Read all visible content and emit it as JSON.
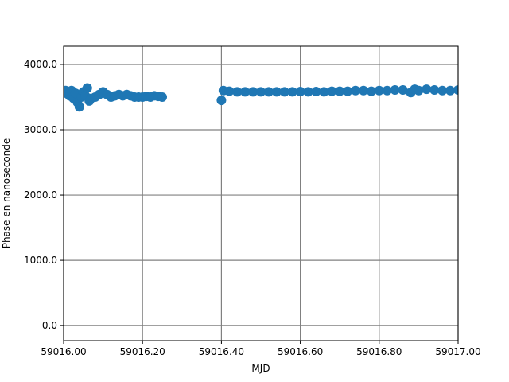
{
  "chart_data": {
    "type": "scatter",
    "xlabel": "MJD",
    "ylabel": "Phase en nanoseconde",
    "color": "#1f77b4",
    "grid": true,
    "xlim": [
      59016.0,
      59017.0
    ],
    "ylim": [
      -230,
      4280
    ],
    "xticks": [
      {
        "value": 59016.0,
        "label": "59016.00"
      },
      {
        "value": 59016.2,
        "label": "59016.20"
      },
      {
        "value": 59016.4,
        "label": "59016.40"
      },
      {
        "value": 59016.6,
        "label": "59016.60"
      },
      {
        "value": 59016.8,
        "label": "59016.80"
      },
      {
        "value": 59017.0,
        "label": "59017.00"
      }
    ],
    "yticks": [
      {
        "value": 0,
        "label": "0.0"
      },
      {
        "value": 1000,
        "label": "1000.0"
      },
      {
        "value": 2000,
        "label": "2000.0"
      },
      {
        "value": 3000,
        "label": "3000.0"
      },
      {
        "value": 4000,
        "label": "4000.0"
      }
    ],
    "x": [
      59016.0,
      59016.005,
      59016.01,
      59016.015,
      59016.02,
      59016.025,
      59016.03,
      59016.035,
      59016.04,
      59016.045,
      59016.05,
      59016.055,
      59016.06,
      59016.065,
      59016.07,
      59016.08,
      59016.09,
      59016.1,
      59016.11,
      59016.12,
      59016.13,
      59016.14,
      59016.15,
      59016.16,
      59016.17,
      59016.18,
      59016.19,
      59016.2,
      59016.21,
      59016.22,
      59016.23,
      59016.24,
      59016.25,
      59016.4,
      59016.405,
      59016.42,
      59016.44,
      59016.46,
      59016.48,
      59016.5,
      59016.52,
      59016.54,
      59016.56,
      59016.58,
      59016.6,
      59016.62,
      59016.64,
      59016.66,
      59016.68,
      59016.7,
      59016.72,
      59016.74,
      59016.76,
      59016.78,
      59016.8,
      59016.82,
      59016.84,
      59016.86,
      59016.88,
      59016.89,
      59016.9,
      59016.92,
      59016.94,
      59016.96,
      59016.98,
      59017.0
    ],
    "values": [
      3560,
      3600,
      3580,
      3520,
      3600,
      3480,
      3560,
      3420,
      3350,
      3500,
      3580,
      3520,
      3640,
      3440,
      3480,
      3500,
      3540,
      3580,
      3540,
      3500,
      3520,
      3540,
      3520,
      3540,
      3520,
      3500,
      3500,
      3500,
      3510,
      3500,
      3520,
      3510,
      3500,
      3450,
      3600,
      3590,
      3580,
      3580,
      3580,
      3580,
      3580,
      3580,
      3580,
      3580,
      3585,
      3580,
      3585,
      3580,
      3590,
      3590,
      3590,
      3600,
      3600,
      3590,
      3600,
      3600,
      3610,
      3610,
      3570,
      3620,
      3600,
      3620,
      3610,
      3600,
      3600,
      3610
    ]
  }
}
